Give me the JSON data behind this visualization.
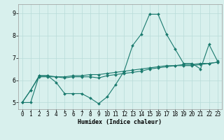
{
  "title": "",
  "xlabel": "Humidex (Indice chaleur)",
  "ylabel": "",
  "xlim": [
    -0.5,
    23.5
  ],
  "ylim": [
    4.7,
    9.4
  ],
  "xticks": [
    0,
    1,
    2,
    3,
    4,
    5,
    6,
    7,
    8,
    9,
    10,
    11,
    12,
    13,
    14,
    15,
    16,
    17,
    18,
    19,
    20,
    21,
    22,
    23
  ],
  "yticks": [
    5,
    6,
    7,
    8,
    9
  ],
  "bg_color": "#d8f0ed",
  "grid_color": "#b8dbd8",
  "line_color": "#1a7a6e",
  "line1_y": [
    5.0,
    5.55,
    6.2,
    6.2,
    5.9,
    5.4,
    5.4,
    5.4,
    5.2,
    4.95,
    5.25,
    5.8,
    6.4,
    7.55,
    8.05,
    8.95,
    8.95,
    8.05,
    7.4,
    6.75,
    6.75,
    6.5,
    7.6,
    6.85
  ],
  "line2_y": [
    5.0,
    5.55,
    6.15,
    6.15,
    6.15,
    6.15,
    6.2,
    6.2,
    6.25,
    6.25,
    6.3,
    6.35,
    6.4,
    6.45,
    6.5,
    6.55,
    6.6,
    6.65,
    6.65,
    6.7,
    6.7,
    6.75,
    6.75,
    6.8
  ],
  "line3_y": [
    5.0,
    5.0,
    6.2,
    6.2,
    6.15,
    6.1,
    6.15,
    6.15,
    6.15,
    6.1,
    6.2,
    6.25,
    6.3,
    6.35,
    6.4,
    6.5,
    6.55,
    6.6,
    6.65,
    6.65,
    6.65,
    6.7,
    6.75,
    6.8
  ],
  "marker_size": 2.0,
  "line_width": 0.8,
  "tick_fontsize": 5.5,
  "xlabel_fontsize": 6.0
}
